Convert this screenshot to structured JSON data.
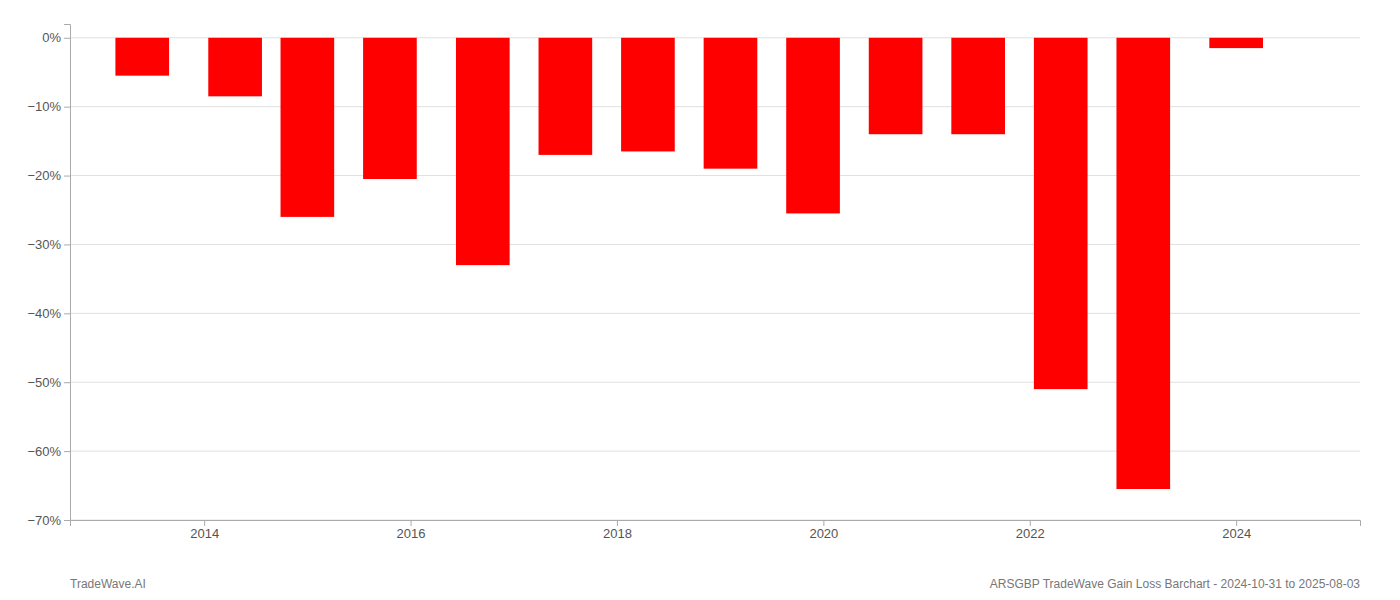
{
  "chart_data": {
    "type": "bar",
    "x": [
      2013.4,
      2014.3,
      2015.0,
      2015.8,
      2016.7,
      2017.5,
      2018.3,
      2019.1,
      2019.9,
      2020.7,
      2021.5,
      2022.3,
      2023.1,
      2024.0
    ],
    "values": [
      -5.5,
      -8.5,
      -26.0,
      -20.5,
      -33.0,
      -17.0,
      -16.5,
      -19.0,
      -25.5,
      -14.0,
      -14.0,
      -51.0,
      -65.5,
      -1.5
    ],
    "color": "#ff0000",
    "xlim": [
      2012.7,
      2025.2
    ],
    "xticks": [
      2014,
      2016,
      2018,
      2020,
      2022,
      2024
    ],
    "ylim": [
      -70,
      2
    ],
    "yticks": [
      {
        "value": 0,
        "label": "0%"
      },
      {
        "value": -10,
        "label": "−10%"
      },
      {
        "value": -20,
        "label": "−20%"
      },
      {
        "value": -30,
        "label": "−30%"
      },
      {
        "value": -40,
        "label": "−40%"
      },
      {
        "value": -50,
        "label": "−50%"
      },
      {
        "value": -60,
        "label": "−60%"
      },
      {
        "value": -70,
        "label": "−70%"
      }
    ],
    "grid": true,
    "annotations": [
      "TradeWave.AI",
      "ARSGBP TradeWave Gain Loss Barchart - 2024-10-31 to 2025-08-03"
    ]
  }
}
